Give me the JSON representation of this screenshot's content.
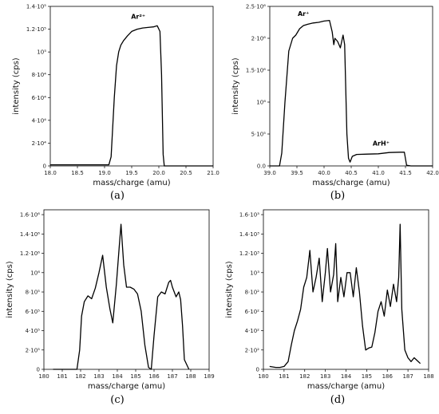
{
  "chart_data": [
    {
      "type": "line",
      "panel_label": "(a)",
      "xlabel": "mass/charge (amu)",
      "ylabel": "intensity (cps)",
      "xlim": [
        18.0,
        21.0
      ],
      "ylim": [
        0,
        140000
      ],
      "x_ticks": [
        18.0,
        18.5,
        19.0,
        19.5,
        20.0,
        20.5,
        21.0
      ],
      "x_tick_labels": [
        "18.0",
        "18.5",
        "19.0",
        "19.5",
        "20.0",
        "20.5",
        "21.0"
      ],
      "y_ticks": [
        0,
        20000,
        40000,
        60000,
        80000,
        100000,
        120000,
        140000
      ],
      "y_tick_labels": [
        "0",
        "2·10⁴",
        "4·10⁴",
        "6·10⁴",
        "8·10⁴",
        "10⁵",
        "1.2·10⁵",
        "1.4·10⁵"
      ],
      "annotations": [
        {
          "text": "Ar²⁺",
          "x": 19.62,
          "y": 129000
        }
      ],
      "x": [
        18.0,
        19.08,
        19.12,
        19.18,
        19.22,
        19.26,
        19.3,
        19.35,
        19.42,
        19.5,
        19.6,
        19.7,
        19.8,
        19.9,
        19.97,
        20.02,
        20.05,
        20.08,
        20.1,
        21.0
      ],
      "values": [
        1000,
        1000,
        8000,
        60000,
        88000,
        100000,
        106000,
        110000,
        114000,
        118000,
        120000,
        121000,
        121500,
        122000,
        123000,
        118000,
        80000,
        10000,
        0,
        0
      ]
    },
    {
      "type": "line",
      "panel_label": "(b)",
      "xlabel": "mass/charge (amu)",
      "ylabel": "intensity (cps)",
      "xlim": [
        39.0,
        42.0
      ],
      "ylim": [
        0,
        2500000
      ],
      "x_ticks": [
        39.0,
        39.5,
        40.0,
        40.5,
        41.0,
        41.5,
        42.0
      ],
      "x_tick_labels": [
        "39.0",
        "39.5",
        "40.0",
        "40.5",
        "41.0",
        "41.5",
        "42.0"
      ],
      "y_ticks": [
        0,
        500000,
        1000000,
        1500000,
        2000000,
        2500000
      ],
      "y_tick_labels": [
        "0.0",
        "5·10⁵",
        "10⁶",
        "1.5·10⁶",
        "2·10⁶",
        "2.5·10⁶"
      ],
      "annotations": [
        {
          "text": "Ar⁺",
          "x": 39.62,
          "y": 2350000
        },
        {
          "text": "ArH⁺",
          "x": 41.05,
          "y": 320000
        }
      ],
      "x": [
        39.0,
        39.18,
        39.22,
        39.28,
        39.35,
        39.42,
        39.48,
        39.55,
        39.62,
        39.7,
        39.8,
        39.9,
        40.0,
        40.1,
        40.15,
        40.18,
        40.2,
        40.25,
        40.3,
        40.35,
        40.38,
        40.42,
        40.45,
        40.48,
        40.52,
        40.6,
        40.8,
        41.0,
        41.2,
        41.4,
        41.48,
        41.52,
        41.6,
        42.0
      ],
      "values": [
        0,
        0,
        200000,
        1000000,
        1800000,
        2000000,
        2050000,
        2150000,
        2200000,
        2220000,
        2240000,
        2250000,
        2270000,
        2280000,
        2100000,
        1900000,
        2000000,
        1950000,
        1850000,
        2050000,
        1900000,
        500000,
        120000,
        60000,
        150000,
        180000,
        185000,
        190000,
        210000,
        215000,
        215000,
        10000,
        0,
        0
      ]
    },
    {
      "type": "line",
      "panel_label": "(c)",
      "xlabel": "mass/charge (amu)",
      "ylabel": "intensity (cps)",
      "xlim": [
        180,
        189
      ],
      "ylim": [
        0,
        1650000
      ],
      "x_ticks": [
        180,
        181,
        182,
        183,
        184,
        185,
        186,
        187,
        188,
        189
      ],
      "x_tick_labels": [
        "180",
        "181",
        "182",
        "183",
        "184",
        "185",
        "186",
        "187",
        "188",
        "189"
      ],
      "y_ticks": [
        0,
        200000,
        400000,
        600000,
        800000,
        1000000,
        1200000,
        1400000,
        1600000
      ],
      "y_tick_labels": [
        "0",
        "2·10⁵",
        "4·10⁵",
        "6·10⁵",
        "8·10⁵",
        "10⁶",
        "1.2·10⁶",
        "1.4·10⁶",
        "1.6·10⁶"
      ],
      "annotations": [],
      "x": [
        180.5,
        181.8,
        181.95,
        182.05,
        182.2,
        182.4,
        182.6,
        182.8,
        183.0,
        183.2,
        183.4,
        183.6,
        183.75,
        183.95,
        184.1,
        184.2,
        184.35,
        184.5,
        184.7,
        184.9,
        185.1,
        185.3,
        185.5,
        185.7,
        185.85,
        186.0,
        186.2,
        186.4,
        186.6,
        186.8,
        186.9,
        187.0,
        187.2,
        187.35,
        187.45,
        187.55,
        187.65,
        187.9
      ],
      "values": [
        0,
        0,
        200000,
        550000,
        700000,
        760000,
        730000,
        840000,
        1000000,
        1180000,
        850000,
        620000,
        480000,
        880000,
        1260000,
        1500000,
        1080000,
        850000,
        850000,
        830000,
        780000,
        600000,
        250000,
        20000,
        0,
        350000,
        750000,
        800000,
        780000,
        900000,
        920000,
        850000,
        750000,
        800000,
        720000,
        450000,
        100000,
        0
      ]
    },
    {
      "type": "line",
      "panel_label": "(d)",
      "xlabel": "mass/charge (amu)",
      "ylabel": "intensity (cps)",
      "xlim": [
        180,
        188
      ],
      "ylim": [
        0,
        1650
      ],
      "x_ticks": [
        180,
        181,
        182,
        183,
        184,
        185,
        186,
        187,
        188
      ],
      "x_tick_labels": [
        "180",
        "181",
        "182",
        "183",
        "184",
        "185",
        "186",
        "187",
        "188"
      ],
      "y_ticks": [
        0,
        200,
        400,
        600,
        800,
        1000,
        1200,
        1400,
        1600
      ],
      "y_tick_labels": [
        "0",
        "2·10²",
        "4·10²",
        "6·10²",
        "8·10²",
        "10³",
        "1.2·10³",
        "1.4·10³",
        "1.6·10³"
      ],
      "annotations": [],
      "x": [
        180.3,
        180.6,
        180.8,
        181.0,
        181.2,
        181.35,
        181.5,
        181.65,
        181.8,
        181.95,
        182.1,
        182.25,
        182.4,
        182.55,
        182.7,
        182.85,
        183.0,
        183.1,
        183.25,
        183.4,
        183.5,
        183.6,
        183.75,
        183.9,
        184.05,
        184.2,
        184.35,
        184.5,
        184.65,
        184.8,
        184.95,
        185.1,
        185.25,
        185.4,
        185.55,
        185.7,
        185.85,
        186.0,
        186.15,
        186.3,
        186.45,
        186.55,
        186.62,
        186.7,
        186.85,
        187.0,
        187.15,
        187.3,
        187.45,
        187.6
      ],
      "values": [
        30,
        20,
        20,
        30,
        80,
        250,
        400,
        500,
        620,
        850,
        950,
        1230,
        800,
        950,
        1150,
        700,
        1000,
        1250,
        800,
        980,
        1300,
        700,
        950,
        750,
        1000,
        1000,
        750,
        1050,
        800,
        450,
        200,
        220,
        230,
        380,
        600,
        700,
        550,
        820,
        650,
        880,
        700,
        950,
        1500,
        620,
        200,
        120,
        80,
        120,
        90,
        60
      ]
    }
  ]
}
